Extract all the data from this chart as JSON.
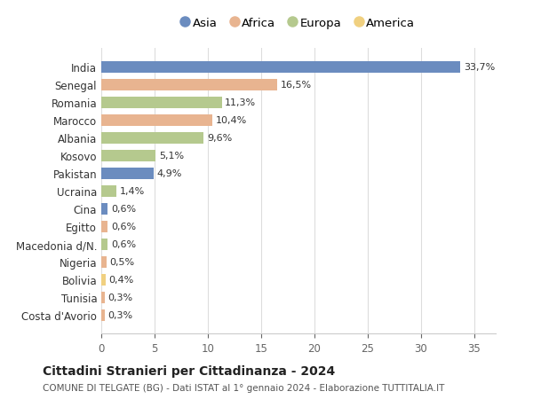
{
  "categories": [
    "India",
    "Senegal",
    "Romania",
    "Marocco",
    "Albania",
    "Kosovo",
    "Pakistan",
    "Ucraina",
    "Cina",
    "Egitto",
    "Macedonia d/N.",
    "Nigeria",
    "Bolivia",
    "Tunisia",
    "Costa d'Avorio"
  ],
  "values": [
    33.7,
    16.5,
    11.3,
    10.4,
    9.6,
    5.1,
    4.9,
    1.4,
    0.6,
    0.6,
    0.6,
    0.5,
    0.4,
    0.3,
    0.3
  ],
  "labels": [
    "33,7%",
    "16,5%",
    "11,3%",
    "10,4%",
    "9,6%",
    "5,1%",
    "4,9%",
    "1,4%",
    "0,6%",
    "0,6%",
    "0,6%",
    "0,5%",
    "0,4%",
    "0,3%",
    "0,3%"
  ],
  "continents": [
    "Asia",
    "Africa",
    "Europa",
    "Africa",
    "Europa",
    "Europa",
    "Asia",
    "Europa",
    "Asia",
    "Africa",
    "Europa",
    "Africa",
    "America",
    "Africa",
    "Africa"
  ],
  "colors": {
    "Asia": "#6b8cbf",
    "Africa": "#e8b490",
    "Europa": "#b5c98e",
    "America": "#f0d080"
  },
  "legend_order": [
    "Asia",
    "Africa",
    "Europa",
    "America"
  ],
  "title": "Cittadini Stranieri per Cittadinanza - 2024",
  "subtitle": "COMUNE DI TELGATE (BG) - Dati ISTAT al 1° gennaio 2024 - Elaborazione TUTTITALIA.IT",
  "xlim": [
    0,
    37
  ],
  "xticks": [
    0,
    5,
    10,
    15,
    20,
    25,
    30,
    35
  ],
  "background_color": "#ffffff",
  "grid_color": "#dddddd"
}
